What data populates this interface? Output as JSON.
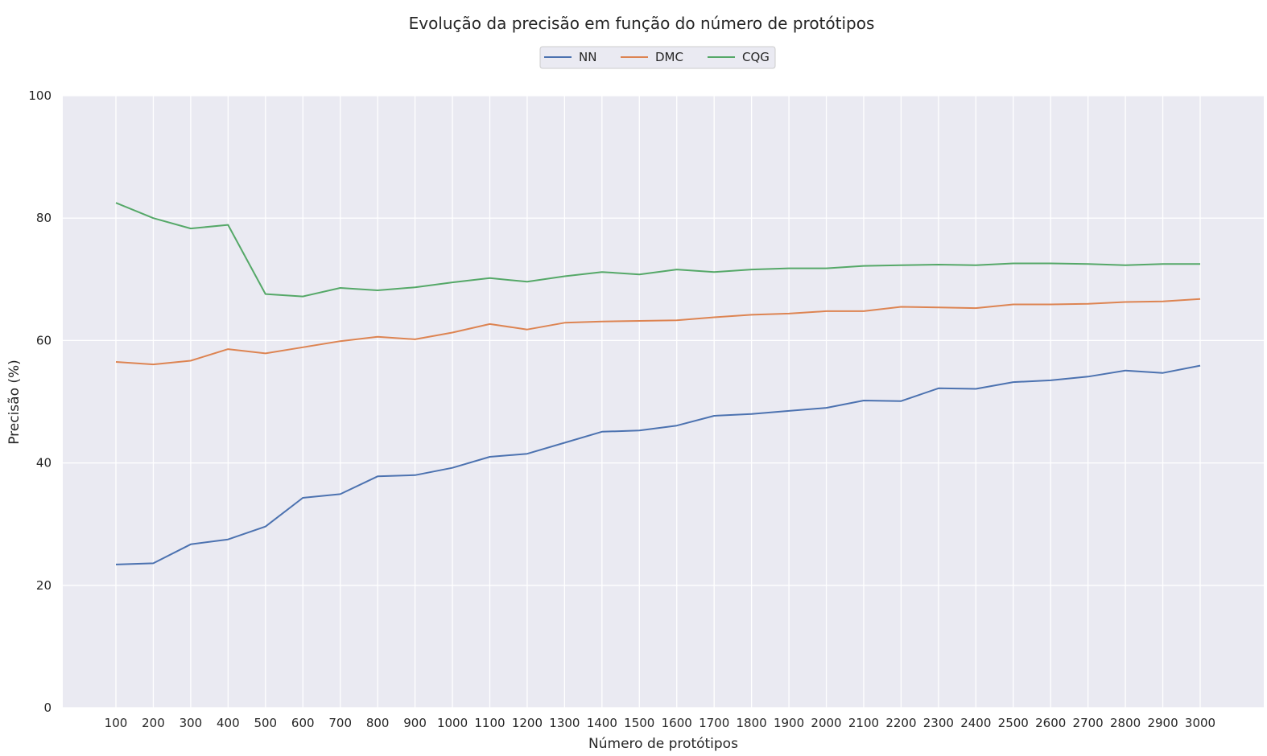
{
  "chart_data": {
    "type": "line",
    "title": "Evolução da precisão em função do número de protótipos",
    "xlabel": "Número de protótipos",
    "ylabel": "Precisão (%)",
    "x": [
      100,
      200,
      300,
      400,
      500,
      600,
      700,
      800,
      900,
      1000,
      1100,
      1200,
      1300,
      1400,
      1500,
      1600,
      1700,
      1800,
      1900,
      2000,
      2100,
      2200,
      2300,
      2400,
      2500,
      2600,
      2700,
      2800,
      2900,
      3000
    ],
    "ylim": [
      0,
      100
    ],
    "yticks": [
      0,
      20,
      40,
      60,
      80,
      100
    ],
    "grid": true,
    "legend_position": "top-center",
    "background_color": "#EAEAF2",
    "series": [
      {
        "name": "NN",
        "color": "#4C72B0",
        "values": [
          23.4,
          23.6,
          26.7,
          27.5,
          29.6,
          34.3,
          34.9,
          37.8,
          38.0,
          39.2,
          41.0,
          41.5,
          43.3,
          45.1,
          45.3,
          46.1,
          47.7,
          48.0,
          48.5,
          49.0,
          50.2,
          50.1,
          52.2,
          52.1,
          53.2,
          53.5,
          54.1,
          55.1,
          54.7,
          55.9
        ]
      },
      {
        "name": "DMC",
        "color": "#DD8452",
        "values": [
          56.5,
          56.1,
          56.7,
          58.6,
          57.9,
          58.9,
          59.9,
          60.6,
          60.2,
          61.3,
          62.7,
          61.8,
          62.9,
          63.1,
          63.2,
          63.3,
          63.8,
          64.2,
          64.4,
          64.8,
          64.8,
          65.5,
          65.4,
          65.3,
          65.9,
          65.9,
          66.0,
          66.3,
          66.4,
          66.8
        ]
      },
      {
        "name": "CQG",
        "color": "#55A868",
        "values": [
          82.5,
          80.0,
          78.3,
          78.9,
          67.6,
          67.2,
          68.6,
          68.2,
          68.7,
          69.5,
          70.2,
          69.6,
          70.5,
          71.2,
          70.8,
          71.6,
          71.2,
          71.6,
          71.8,
          71.8,
          72.2,
          72.3,
          72.4,
          72.3,
          72.6,
          72.6,
          72.5,
          72.3,
          72.5,
          72.5
        ]
      }
    ]
  }
}
